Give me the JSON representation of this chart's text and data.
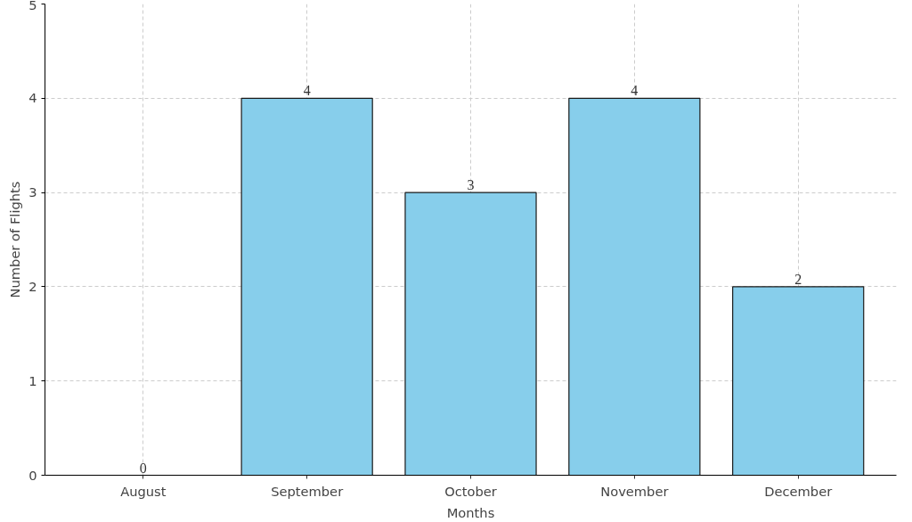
{
  "chart_data": {
    "type": "bar",
    "categories": [
      "August",
      "September",
      "October",
      "November",
      "December"
    ],
    "values": [
      0,
      4,
      3,
      4,
      2
    ],
    "color": "#87ceeb",
    "xlabel": "Months",
    "ylabel": "Number of Flights",
    "ylim": [
      0,
      5
    ],
    "yticks": [
      0,
      1,
      2,
      3,
      4,
      5
    ],
    "grid": true,
    "data_labels": true
  }
}
